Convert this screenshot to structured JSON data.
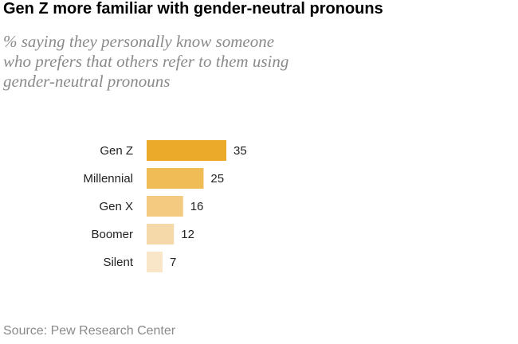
{
  "title": "Gen Z more familiar with gender-neutral pronouns",
  "subtitle": {
    "line1": "% saying they personally know someone",
    "line2": "who prefers that others refer to them using",
    "line3": "gender-neutral pronouns"
  },
  "source": "Source: Pew Research Center",
  "chart_data": {
    "type": "bar",
    "orientation": "horizontal",
    "categories": [
      "Gen Z",
      "Millennial",
      "Gen X",
      "Boomer",
      "Silent"
    ],
    "values": [
      35,
      25,
      16,
      12,
      7
    ],
    "value_labels": [
      "35",
      "25",
      "16",
      "12",
      "7"
    ],
    "colors": [
      "#EBAA2A",
      "#F0BC55",
      "#F3CA7F",
      "#F6D9A9",
      "#F9E6C8"
    ],
    "title": "Gen Z more familiar with gender-neutral pronouns",
    "xlabel": "",
    "ylabel": "",
    "xlim": [
      0,
      35
    ],
    "grid": false,
    "legend": "none"
  }
}
